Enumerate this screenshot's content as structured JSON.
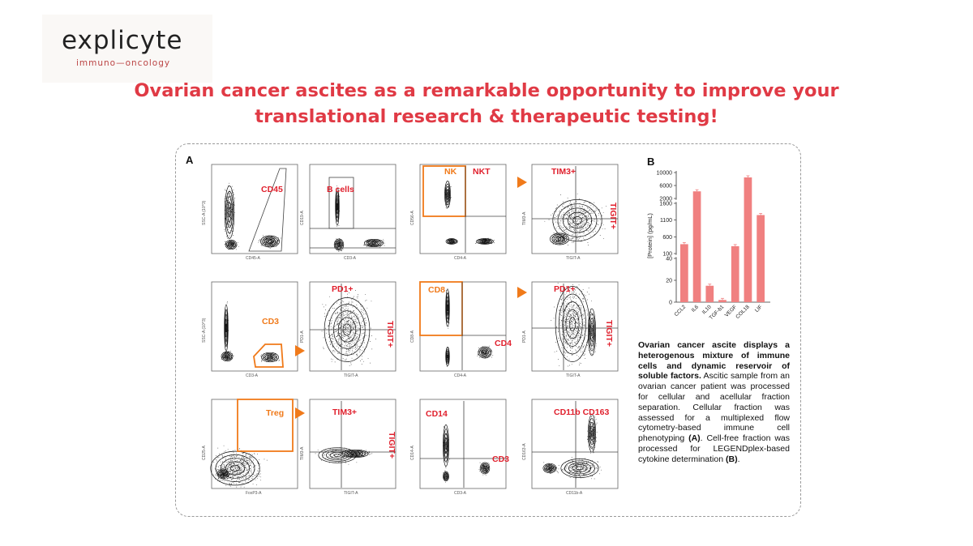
{
  "logo": {
    "word": "explicyte",
    "tagline": "immuno—oncology"
  },
  "headline": {
    "line1": "Ovarian cancer ascites as a remarkable opportunity to improve your",
    "line2": "translational research & therapeutic testing!"
  },
  "panel_a": {
    "letter": "A"
  },
  "panel_b": {
    "letter": "B"
  },
  "gates": {
    "cd45": "CD45",
    "bcells": "B cells",
    "nk": "NK",
    "nkt": "NKT",
    "tim3_r1": "TIM3+",
    "tigit_r1": "TIGIT+",
    "cd3": "CD3",
    "pd1_r2a": "PD1+",
    "tigit_r2a": "TIGIT+",
    "cd8": "CD8",
    "cd4": "CD4",
    "pd1_r2b": "PD1+",
    "tigit_r2b": "TIGIT+",
    "treg": "Treg",
    "tim3_r3": "TIM3+",
    "tigit_r3": "TIGIT+",
    "cd14": "CD14",
    "cd3_r3": "CD3",
    "cd11b_cd163": "CD11b CD163"
  },
  "axes": {
    "p1": {
      "x": "CD45-A",
      "y": "SSC-A (10^3)"
    },
    "p2": {
      "x": "CD3-A",
      "y": "CD19-A"
    },
    "p3": {
      "x": "CD4-A",
      "y": "CD56-A"
    },
    "p4": {
      "x": "TIGIT-A",
      "y": "TIM3-A"
    },
    "p5": {
      "x": "CD3-A",
      "y": "SSC-A (10^3)"
    },
    "p6": {
      "x": "TIGIT-A",
      "y": "PD1-A"
    },
    "p7": {
      "x": "CD4-A",
      "y": "CD8-A"
    },
    "p8": {
      "x": "TIGIT-A",
      "y": "PD1-A"
    },
    "p9": {
      "x": "FoxP3-A",
      "y": "CD25-A"
    },
    "p10": {
      "x": "TIGIT-A",
      "y": "TIM3-A"
    },
    "p11": {
      "x": "CD3-A",
      "y": "CD14-A"
    },
    "p12": {
      "x": "CD11b-A",
      "y": "CD163-A"
    }
  },
  "chart_data": {
    "type": "bar",
    "ylabel": "[Protein] (pg/mL)",
    "categories": [
      "CCL2",
      "IL6",
      "IL10",
      "TGF-b1",
      "VEGF",
      "COL18",
      "LIF"
    ],
    "values": [
      380,
      4200,
      15,
      2,
      320,
      8500,
      1250
    ],
    "broken_axis_ticks": [
      "10000",
      "6000",
      "2000",
      "1600",
      "1100",
      "600",
      "100",
      "40",
      "20",
      "0"
    ],
    "bar_color": "#f08080"
  },
  "caption": {
    "bold": "Ovarian cancer ascite displays a heterogenous mixture of immune cells and dynamic reservoir of soluble factors.",
    "body1": "Ascitic sample from an ovarian cancer patient was processed for cellular and acellular fraction separation. Cellular fraction was assessed for a multiplexed flow cytometry-based immune cell phenotyping ",
    "ref_a": "(A)",
    "body2": ". Cell-free fraction was processed for LEGENDplex-based cytokine determination ",
    "ref_b": "(B)",
    "end": "."
  },
  "colors": {
    "accent": "#e03a45",
    "gate_orange": "#f07a1a",
    "gate_red": "#e0202d"
  }
}
